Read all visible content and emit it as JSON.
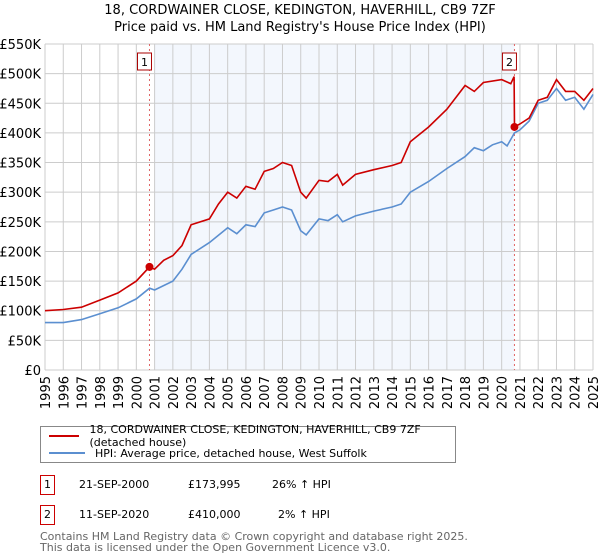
{
  "chart_data": {
    "type": "line",
    "title": "18, CORDWAINER CLOSE, KEDINGTON, HAVERHILL, CB9 7ZF",
    "subtitle": "Price paid vs. HM Land Registry's House Price Index (HPI)",
    "xlim": [
      1995,
      2025
    ],
    "ylim": [
      0,
      550000
    ],
    "y_ticks": [
      0,
      50000,
      100000,
      150000,
      200000,
      250000,
      300000,
      350000,
      400000,
      450000,
      500000,
      550000
    ],
    "y_tick_labels": [
      "£0",
      "£50K",
      "£100K",
      "£150K",
      "£200K",
      "£250K",
      "£300K",
      "£350K",
      "£400K",
      "£450K",
      "£500K",
      "£550K"
    ],
    "x_ticks": [
      "1995",
      "1996",
      "1997",
      "1998",
      "1999",
      "2000",
      "2001",
      "2002",
      "2003",
      "2004",
      "2005",
      "2006",
      "2007",
      "2008",
      "2009",
      "2010",
      "2011",
      "2012",
      "2013",
      "2014",
      "2015",
      "2016",
      "2017",
      "2018",
      "2019",
      "2020",
      "2021",
      "2022",
      "2023",
      "2024",
      "2025"
    ],
    "grid": true,
    "shaded_range": [
      2000.72,
      2020.7
    ],
    "series": [
      {
        "name": "18, CORDWAINER CLOSE, KEDINGTON, HAVERHILL, CB9 7ZF (detached house)",
        "color": "#cc0000",
        "x": [
          1995,
          1996,
          1997,
          1998,
          1999,
          2000,
          2000.72,
          2001,
          2001.5,
          2002,
          2002.5,
          2003,
          2004,
          2004.5,
          2005,
          2005.5,
          2006,
          2006.5,
          2007,
          2007.5,
          2008,
          2008.5,
          2009,
          2009.3,
          2010,
          2010.5,
          2011,
          2011.3,
          2012,
          2013,
          2014,
          2014.5,
          2015,
          2016,
          2017,
          2018,
          2018.5,
          2019,
          2020,
          2020.5,
          2020.68,
          2020.7,
          2021,
          2021.5,
          2022,
          2022.5,
          2023,
          2023.5,
          2024,
          2024.5,
          2025
        ],
        "y": [
          100000,
          102000,
          106000,
          118000,
          130000,
          150000,
          173995,
          170000,
          185000,
          193000,
          210000,
          245000,
          255000,
          280000,
          300000,
          290000,
          310000,
          305000,
          335000,
          340000,
          350000,
          345000,
          300000,
          290000,
          320000,
          318000,
          330000,
          312000,
          330000,
          338000,
          345000,
          350000,
          385000,
          410000,
          440000,
          480000,
          470000,
          485000,
          490000,
          483000,
          495000,
          410000,
          415000,
          425000,
          455000,
          460000,
          490000,
          470000,
          470000,
          455000,
          475000
        ]
      },
      {
        "name": "HPI: Average price, detached house, West Suffolk",
        "color": "#5b8fd0",
        "x": [
          1995,
          1996,
          1997,
          1998,
          1999,
          2000,
          2000.72,
          2001,
          2002,
          2002.5,
          2003,
          2004,
          2005,
          2005.5,
          2006,
          2006.5,
          2007,
          2007.5,
          2008,
          2008.5,
          2009,
          2009.3,
          2010,
          2010.5,
          2011,
          2011.3,
          2012,
          2013,
          2014,
          2014.5,
          2015,
          2016,
          2017,
          2018,
          2018.5,
          2019,
          2019.5,
          2020,
          2020.3,
          2020.7,
          2021,
          2021.5,
          2022,
          2022.5,
          2023,
          2023.5,
          2024,
          2024.5,
          2025
        ],
        "y": [
          80000,
          80000,
          85000,
          95000,
          105000,
          120000,
          138000,
          135000,
          150000,
          170000,
          195000,
          215000,
          240000,
          230000,
          245000,
          242000,
          265000,
          270000,
          275000,
          270000,
          235000,
          228000,
          255000,
          252000,
          262000,
          250000,
          260000,
          268000,
          275000,
          280000,
          300000,
          318000,
          340000,
          360000,
          375000,
          370000,
          380000,
          385000,
          378000,
          400000,
          405000,
          420000,
          450000,
          455000,
          475000,
          455000,
          460000,
          440000,
          465000
        ]
      }
    ],
    "annotations": [
      {
        "label": "1",
        "x": 2000.72,
        "y": 173995
      },
      {
        "label": "2",
        "x": 2020.7,
        "y": 410000
      }
    ]
  },
  "legend": {
    "red": "18, CORDWAINER CLOSE, KEDINGTON, HAVERHILL, CB9 7ZF (detached house)",
    "blue": "HPI: Average price, detached house, West Suffolk"
  },
  "transactions": [
    {
      "num": "1",
      "date": "21-SEP-2000",
      "price": "£173,995",
      "hpi": "26% ↑ HPI"
    },
    {
      "num": "2",
      "date": "11-SEP-2020",
      "price": "£410,000",
      "hpi": "2% ↑ HPI"
    }
  ],
  "footer": {
    "line1": "Contains HM Land Registry data © Crown copyright and database right 2025.",
    "line2": "This data is licensed under the Open Government Licence v3.0."
  }
}
